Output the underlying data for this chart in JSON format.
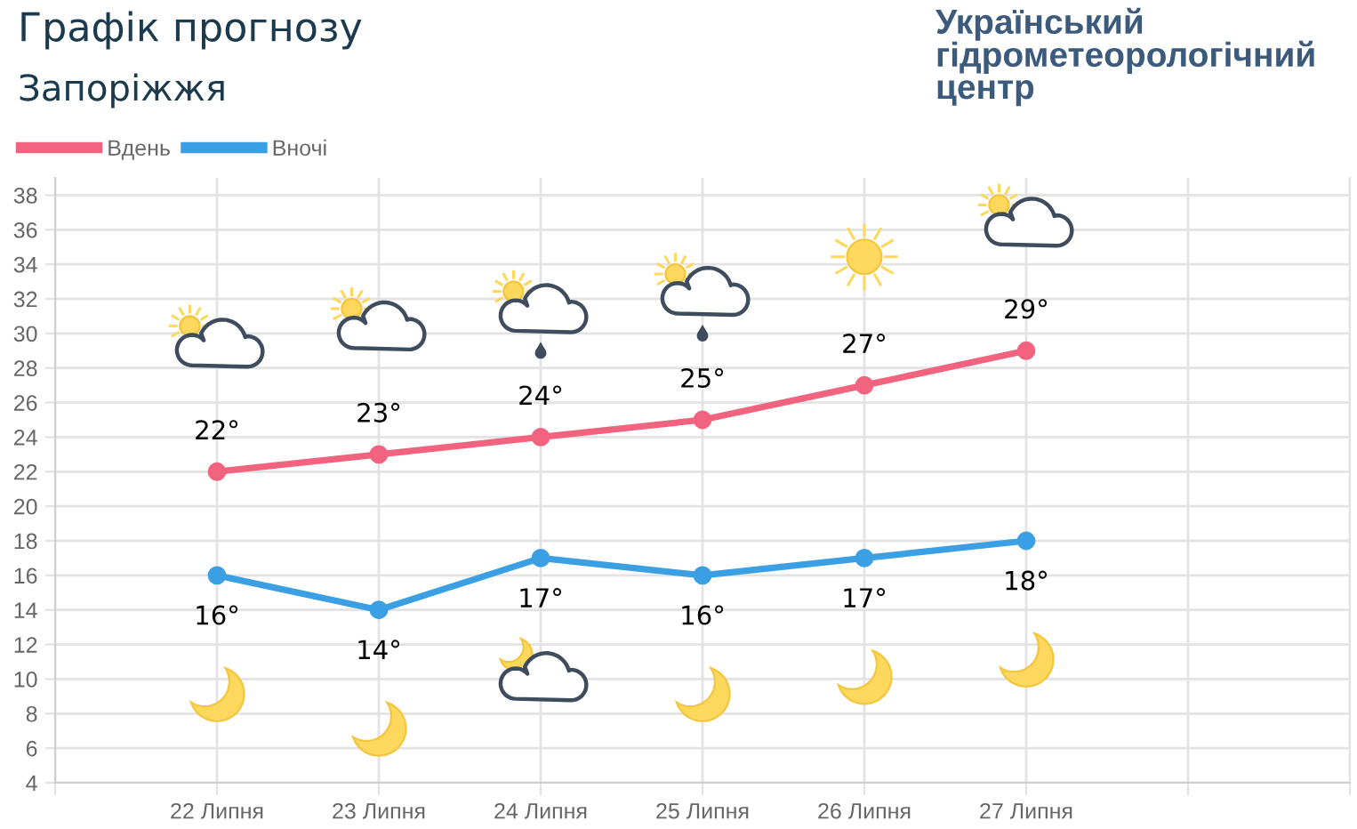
{
  "chart_data": {
    "type": "line",
    "title": "Графік прогнозу",
    "subtitle": "Запоріжжя",
    "categories": [
      null,
      "22 Липня",
      "23 Липня",
      "24 Липня",
      "25 Липня",
      "26 Липня",
      "27 Липня",
      null,
      null
    ],
    "series": [
      {
        "name": "Вдень",
        "color": "#f1637e",
        "values": [
          null,
          22,
          23,
          24,
          25,
          27,
          29,
          null,
          null
        ],
        "value_labels": [
          null,
          "22°",
          "23°",
          "24°",
          "25°",
          "27°",
          "29°",
          null,
          null
        ]
      },
      {
        "name": "Вночі",
        "color": "#3b9fe3",
        "values": [
          null,
          16,
          14,
          17,
          16,
          17,
          18,
          null,
          null
        ],
        "value_labels": [
          null,
          "16°",
          "14°",
          "17°",
          "16°",
          "17°",
          "18°",
          null,
          null
        ]
      }
    ],
    "ylim": [
      4,
      39
    ],
    "yticks": [
      4,
      6,
      8,
      10,
      12,
      14,
      16,
      18,
      20,
      22,
      24,
      26,
      28,
      30,
      32,
      34,
      36,
      38
    ],
    "grid": true,
    "legend": "top left",
    "marker": "circle",
    "line_style": "solid",
    "annotations": [
      "Український\nгідрометеорологічний\nцентр"
    ]
  }
}
